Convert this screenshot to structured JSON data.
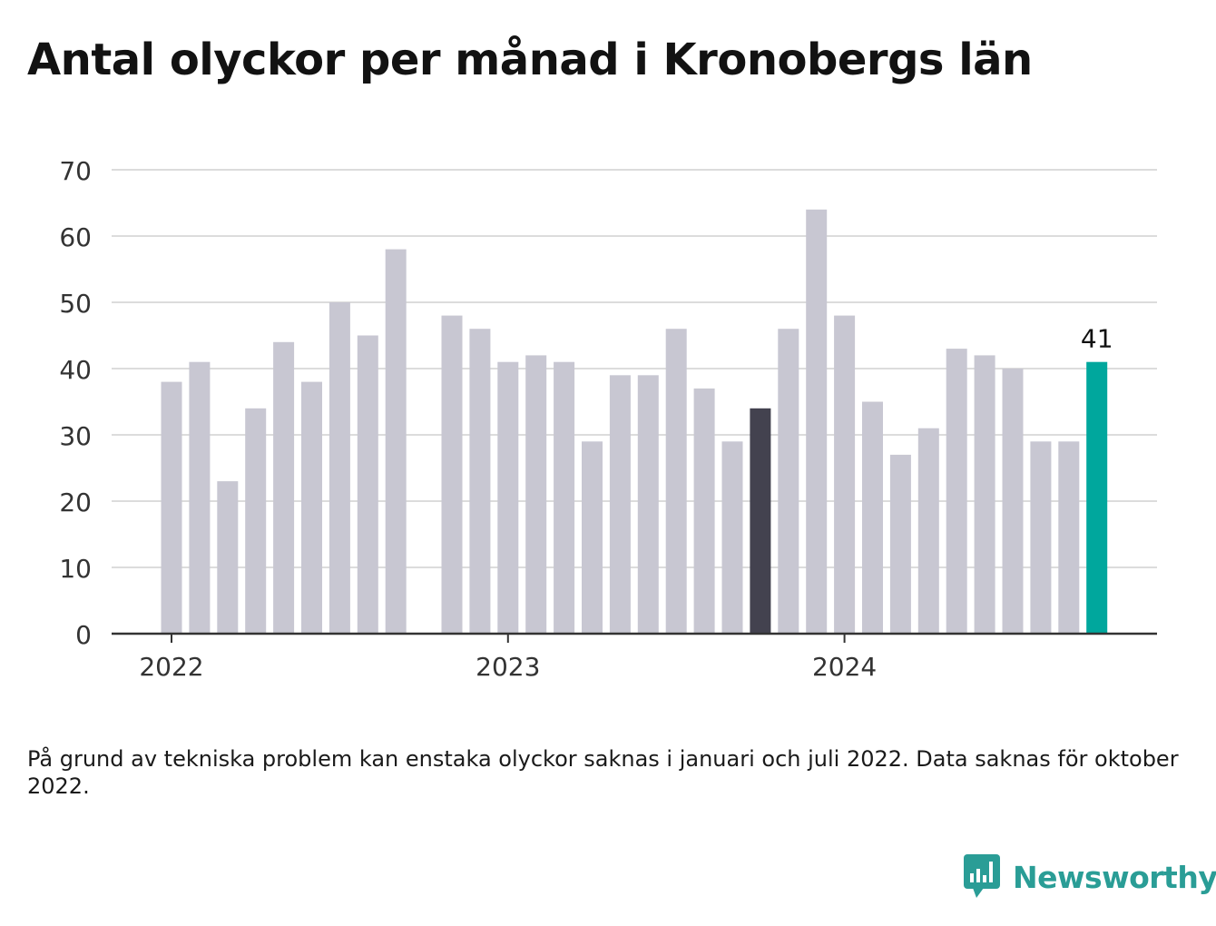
{
  "title": "Antal olyckor per månad i Kronobergs län",
  "note": "På grund av tekniska problem kan enstaka olyckor saknas i januari och juli 2022. Data saknas för oktober 2022.",
  "brand": {
    "name": "Newsworthy",
    "icon": "bar-chart-speech-bubble-icon",
    "color": "#2a9d96"
  },
  "chart_data": {
    "type": "bar",
    "title": "Antal olyckor per månad i Kronobergs län",
    "xlabel": "",
    "ylabel": "",
    "ylim": [
      0,
      70
    ],
    "yticks": [
      0,
      10,
      20,
      30,
      40,
      50,
      60,
      70
    ],
    "xtick_labels": [
      "2022",
      "2023",
      "2024"
    ],
    "grid": true,
    "colors": {
      "default": "#c8c7d2",
      "comparison": "#43424f",
      "latest": "#00a79d",
      "grid": "#dcdcdc",
      "axis": "#333333"
    },
    "categories": [
      "2022-01",
      "2022-02",
      "2022-03",
      "2022-04",
      "2022-05",
      "2022-06",
      "2022-07",
      "2022-08",
      "2022-09",
      "2022-10",
      "2022-11",
      "2022-12",
      "2023-01",
      "2023-02",
      "2023-03",
      "2023-04",
      "2023-05",
      "2023-06",
      "2023-07",
      "2023-08",
      "2023-09",
      "2023-10",
      "2023-11",
      "2023-12",
      "2024-01",
      "2024-02",
      "2024-03",
      "2024-04",
      "2024-05",
      "2024-06",
      "2024-07",
      "2024-08",
      "2024-09",
      "2024-10"
    ],
    "values": [
      38,
      41,
      23,
      34,
      44,
      38,
      50,
      45,
      58,
      null,
      48,
      46,
      41,
      42,
      41,
      29,
      39,
      39,
      46,
      37,
      29,
      34,
      46,
      64,
      48,
      35,
      27,
      31,
      43,
      42,
      40,
      29,
      29,
      41
    ],
    "highlight": {
      "comparison": "2023-10",
      "latest": "2024-10"
    },
    "annotations": [
      {
        "category": "2024-10",
        "text": "41"
      }
    ]
  }
}
